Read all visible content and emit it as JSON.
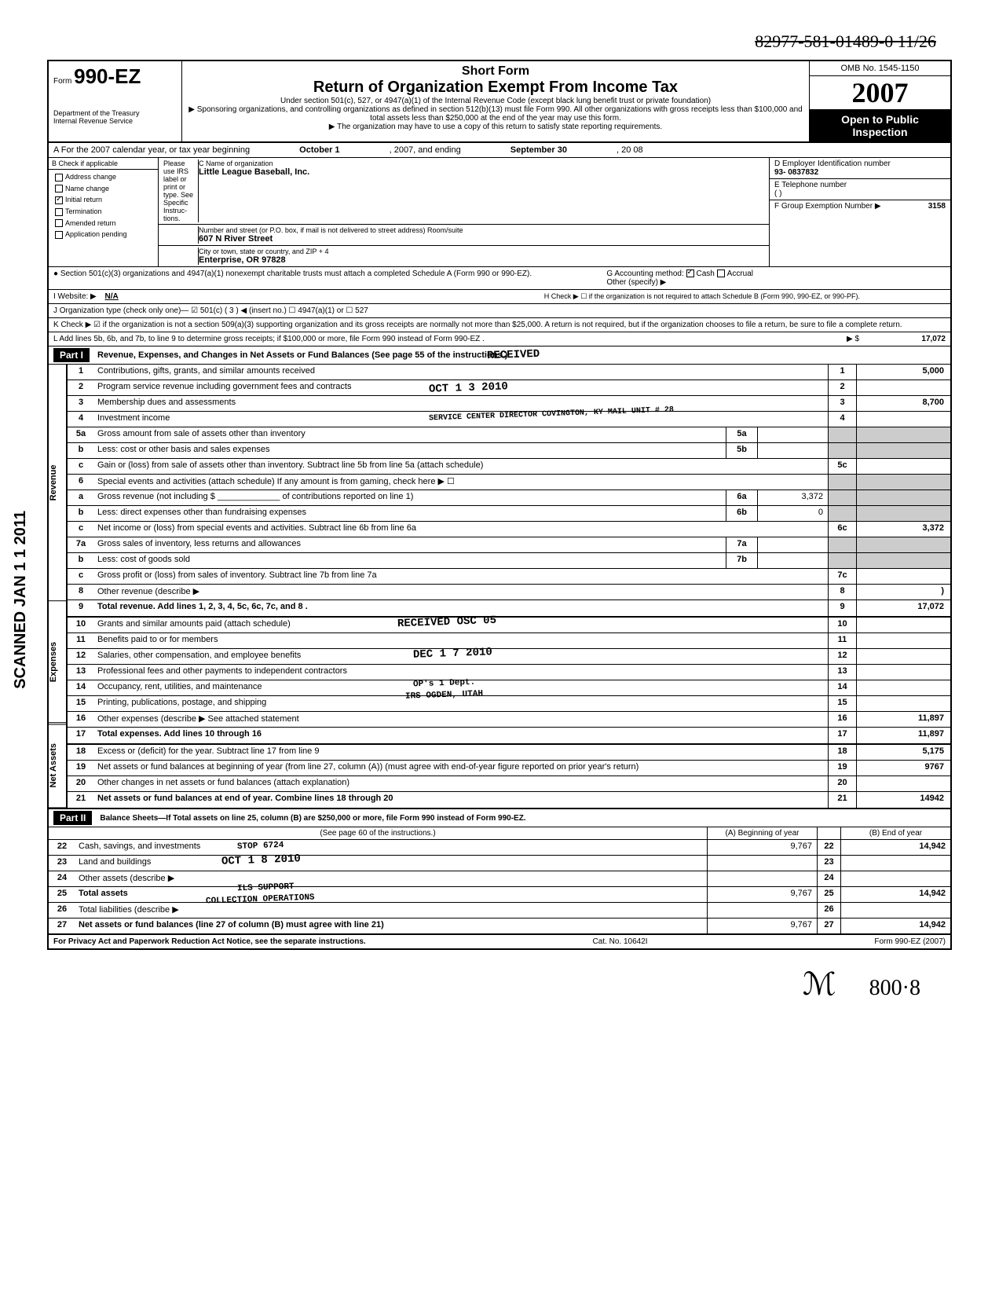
{
  "handwritten_top": "82977-581-01489-0  11/26",
  "header": {
    "form_label": "Form",
    "form_number": "990-EZ",
    "dept": "Department of the Treasury",
    "irs": "Internal Revenue Service",
    "short_form": "Short Form",
    "title": "Return of Organization Exempt From Income Tax",
    "sub1": "Under section 501(c), 527, or 4947(a)(1) of the Internal Revenue Code (except black lung benefit trust or private foundation)",
    "sub2": "▶ Sponsoring organizations, and controlling organizations as defined in section 512(b)(13) must file Form 990. All other organizations with gross receipts less than $100,000 and total assets less than $250,000 at the end of the year may use this form.",
    "sub3": "▶ The organization may have to use a copy of this return to satisfy state reporting requirements.",
    "omb": "OMB No. 1545-1150",
    "year": "2007",
    "open": "Open to Public Inspection"
  },
  "row_a": {
    "text": "A For the 2007 calendar year, or tax year beginning",
    "begin": "October 1",
    "mid": ", 2007, and ending",
    "end": "September 30",
    "yr": ", 20   08"
  },
  "col_b": {
    "header": "B  Check if applicable",
    "items": [
      "Address change",
      "Name change",
      "Initial return",
      "Termination",
      "Amended return",
      "Application pending"
    ],
    "checked_index": 2
  },
  "col_c": {
    "please": "Please use IRS label or print or type. See Specific Instruc-tions.",
    "name_label": "C  Name of organization",
    "name": "Little League Baseball, Inc.",
    "addr_label": "Number and street (or P.O. box, if mail is not delivered to street address)   Room/suite",
    "addr": "607 N River Street",
    "city_label": "City or town, state or country, and ZIP + 4",
    "city": "Enterprise, OR 97828"
  },
  "col_d": {
    "ein_label": "D  Employer Identification number",
    "ein": "93-        0837832",
    "tel_label": "E  Telephone number",
    "tel": "(        )",
    "grp_label": "F  Group Exemption Number  ▶",
    "grp": "3158"
  },
  "bullet1": {
    "left": "● Section 501(c)(3) organizations and 4947(a)(1) nonexempt charitable trusts must attach a completed Schedule A (Form 990 or 990-EZ).",
    "g": "G  Accounting method:",
    "cash": "Cash",
    "accrual": "Accrual",
    "other": "Other (specify) ▶"
  },
  "row_i": {
    "label": "I   Website: ▶",
    "val": "N/A",
    "h": "H  Check ▶ ☐ if the organization is not required to attach Schedule B (Form 990, 990-EZ, or 990-PF)."
  },
  "row_j": "J   Organization type (check only one)— ☑ 501(c) ( 3 ) ◀ (insert no.)   ☐ 4947(a)(1) or   ☐ 527",
  "row_k": "K  Check ▶ ☑ if the organization is not a section 509(a)(3) supporting organization and its gross receipts are normally not more than $25,000. A return is not required, but if the organization chooses to file a return, be sure to file a complete return.",
  "row_l": {
    "text": "L  Add lines 5b, 6b, and 7b, to line 9 to determine gross receipts; if $100,000 or more, file Form 990 instead of Form 990-EZ .",
    "arrow": "▶  $",
    "amt": "17,072"
  },
  "part1": {
    "label": "Part I",
    "title": "Revenue, Expenses, and Changes in Net Assets or Fund Balances (See page 55 of the instructions.)"
  },
  "stamps": {
    "received": "RECEIVED",
    "date1": "OCT 1 3 2010",
    "svc": "SERVICE CENTER DIRECTOR COVINGTON, KY MAIL UNIT # 28",
    "rec2": "RECEIVED OSC  05",
    "date2": "DEC 1 7 2010",
    "ops": "OP's 1 Dept.",
    "ogden": "IRS OGDEN, UTAH",
    "stop": "STOP 6724",
    "date3": "OCT 1 8 2010",
    "support": "ILS SUPPORT",
    "collection": "COLLECTION OPERATIONS"
  },
  "revenue_lines": [
    {
      "n": "1",
      "d": "Contributions, gifts, grants, and similar amounts received",
      "box": "1",
      "amt": "5,000"
    },
    {
      "n": "2",
      "d": "Program service revenue including government fees and contracts",
      "box": "2",
      "amt": ""
    },
    {
      "n": "3",
      "d": "Membership dues and assessments",
      "box": "3",
      "amt": "8,700"
    },
    {
      "n": "4",
      "d": "Investment income",
      "box": "4",
      "amt": ""
    },
    {
      "n": "5a",
      "d": "Gross amount from sale of assets other than inventory",
      "mid": "5a",
      "midamt": ""
    },
    {
      "n": "b",
      "d": "Less: cost or other basis and sales expenses",
      "mid": "5b",
      "midamt": ""
    },
    {
      "n": "c",
      "d": "Gain or (loss) from sale of assets other than inventory. Subtract line 5b from line 5a (attach schedule)",
      "box": "5c",
      "amt": ""
    },
    {
      "n": "6",
      "d": "Special events and activities (attach schedule)  If any amount is from gaming, check here ▶  ☐"
    },
    {
      "n": "a",
      "d": "Gross revenue (not including $ _____________ of contributions reported on line 1)",
      "mid": "6a",
      "midamt": "3,372"
    },
    {
      "n": "b",
      "d": "Less: direct expenses other than fundraising expenses",
      "mid": "6b",
      "midamt": "0"
    },
    {
      "n": "c",
      "d": "Net income or (loss) from special events and activities. Subtract line 6b from line 6a",
      "box": "6c",
      "amt": "3,372"
    },
    {
      "n": "7a",
      "d": "Gross sales of inventory, less returns and allowances",
      "mid": "7a",
      "midamt": ""
    },
    {
      "n": "b",
      "d": "Less: cost of goods sold",
      "mid": "7b",
      "midamt": ""
    },
    {
      "n": "c",
      "d": "Gross profit or (loss) from sales of inventory. Subtract line 7b from line 7a",
      "box": "7c",
      "amt": ""
    },
    {
      "n": "8",
      "d": "Other revenue (describe ▶",
      "box": "8",
      "amt": ")"
    },
    {
      "n": "9",
      "d": "Total revenue. Add lines 1, 2, 3, 4, 5c, 6c, 7c, and 8 .",
      "box": "9",
      "amt": "17,072",
      "bold": true
    }
  ],
  "expense_lines": [
    {
      "n": "10",
      "d": "Grants and similar amounts paid (attach schedule)",
      "box": "10",
      "amt": ""
    },
    {
      "n": "11",
      "d": "Benefits paid to or for members",
      "box": "11",
      "amt": ""
    },
    {
      "n": "12",
      "d": "Salaries, other compensation, and employee benefits",
      "box": "12",
      "amt": ""
    },
    {
      "n": "13",
      "d": "Professional fees and other payments to independent contractors",
      "box": "13",
      "amt": ""
    },
    {
      "n": "14",
      "d": "Occupancy, rent, utilities, and maintenance",
      "box": "14",
      "amt": ""
    },
    {
      "n": "15",
      "d": "Printing, publications, postage, and shipping",
      "box": "15",
      "amt": ""
    },
    {
      "n": "16",
      "d": "Other expenses (describe ▶  See attached statement",
      "box": "16",
      "amt": "11,897"
    },
    {
      "n": "17",
      "d": "Total expenses. Add lines 10 through 16",
      "box": "17",
      "amt": "11,897",
      "bold": true
    }
  ],
  "netassets_lines": [
    {
      "n": "18",
      "d": "Excess or (deficit) for the year. Subtract line 17 from line 9",
      "box": "18",
      "amt": "5,175"
    },
    {
      "n": "19",
      "d": "Net assets or fund balances at beginning of year (from line 27, column (A)) (must agree with end-of-year figure reported on prior year's return)",
      "box": "19",
      "amt": "9767"
    },
    {
      "n": "20",
      "d": "Other changes in net assets or fund balances (attach explanation)",
      "box": "20",
      "amt": ""
    },
    {
      "n": "21",
      "d": "Net assets or fund balances at end of year. Combine lines 18 through 20",
      "box": "21",
      "amt": "14942",
      "bold": true
    }
  ],
  "part2": {
    "label": "Part II",
    "title": "Balance Sheets—If Total assets on line 25, column (B) are $250,000 or more, file Form 990 instead of Form 990-EZ.",
    "instr": "(See page 60 of the instructions.)",
    "colA": "(A) Beginning of year",
    "colB": "(B) End of year"
  },
  "balance_lines": [
    {
      "n": "22",
      "d": "Cash, savings, and investments",
      "a": "9,767",
      "box": "22",
      "b": "14,942"
    },
    {
      "n": "23",
      "d": "Land and buildings",
      "a": "",
      "box": "23",
      "b": ""
    },
    {
      "n": "24",
      "d": "Other assets (describe ▶",
      "a": "",
      "box": "24",
      "b": ""
    },
    {
      "n": "25",
      "d": "Total assets",
      "a": "9,767",
      "box": "25",
      "b": "14,942",
      "bold": true
    },
    {
      "n": "26",
      "d": "Total liabilities (describe ▶",
      "a": "",
      "box": "26",
      "b": ""
    },
    {
      "n": "27",
      "d": "Net assets or fund balances (line 27 of column (B) must agree with line 21)",
      "a": "9,767",
      "box": "27",
      "b": "14,942",
      "bold": true
    }
  ],
  "footer": {
    "left": "For Privacy Act and Paperwork Reduction Act Notice, see the separate instructions.",
    "mid": "Cat. No. 10642I",
    "right": "Form 990-EZ (2007)"
  },
  "scanned": "SCANNED  JAN 1 1  2011",
  "sig_bottom": "800·8"
}
